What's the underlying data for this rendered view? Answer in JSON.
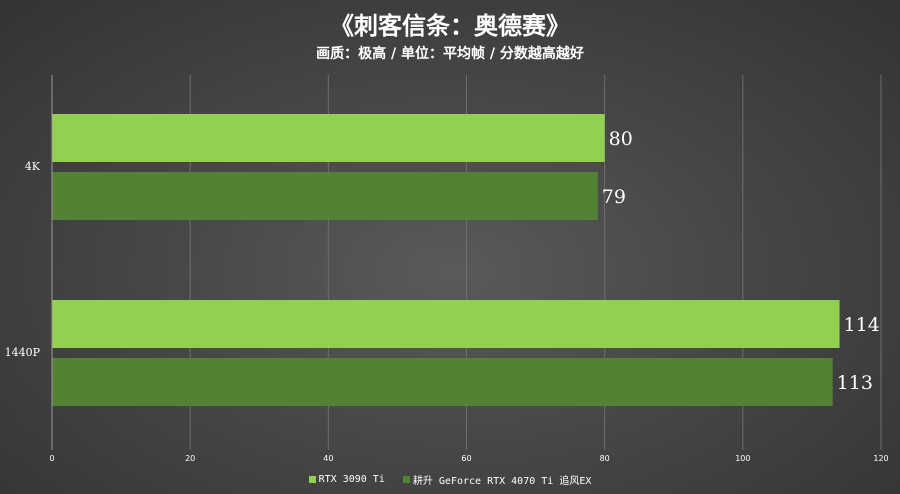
{
  "chart_data": {
    "type": "bar",
    "orientation": "horizontal",
    "title": "《刺客信条：奥德赛》",
    "subtitle": "画质：极高 / 单位：平均帧 / 分数越高越好",
    "categories": [
      "4K",
      "1440P"
    ],
    "series": [
      {
        "name": "RTX 3090 Ti",
        "color": "#92d050",
        "values": [
          80,
          114
        ]
      },
      {
        "name": "耕升 GeForce RTX 4070 Ti 追风EX",
        "color": "#548235",
        "values": [
          79,
          113
        ]
      }
    ],
    "xlim": [
      0,
      120
    ],
    "xticks": [
      0,
      20,
      40,
      60,
      80,
      100,
      120
    ],
    "grid": true,
    "legend_position": "bottom"
  }
}
